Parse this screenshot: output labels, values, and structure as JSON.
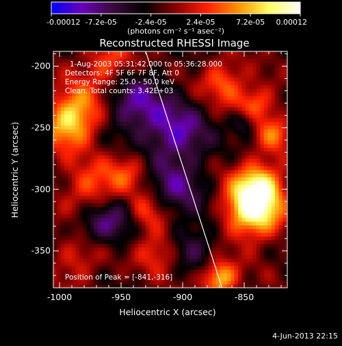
{
  "chart_data": {
    "type": "heatmap",
    "title": "Reconstructed RHESSI Image",
    "xlabel": "Heliocentric X (arcsec)",
    "ylabel": "Heliocentric Y (arcsec)",
    "xlim": [
      -1005,
      -815
    ],
    "ylim": [
      -380,
      -188
    ],
    "x_ticks": [
      -1000,
      -950,
      -900,
      -850
    ],
    "x_tick_labels": [
      "-1000",
      "-950",
      "-900",
      "-850"
    ],
    "y_ticks": [
      -200,
      -250,
      -300,
      -350
    ],
    "y_tick_labels": [
      "-200",
      "-250",
      "-300",
      "-350"
    ],
    "colorbar": {
      "range": [
        -0.00012,
        0.00012
      ],
      "tick_labels": [
        "-0.00012",
        "-7.2e-05",
        "-2.4e-05",
        "2.4e-05",
        "7.2e-05",
        "0.00012"
      ],
      "units_line": "(photons cm⁻² s⁻¹ asec⁻²)",
      "colormap": [
        "#0000ff",
        "#6a00b8",
        "#3a0a3a",
        "#000000",
        "#8a0000",
        "#ff2000",
        "#ff9000",
        "#ffff60",
        "#ffffff"
      ]
    },
    "annotations": [
      "1-Aug-2003 05:31:42.000 to 05:36:28.000",
      "Detectors: 4F 5F 6F 7F 8F, Att 0",
      "Energy Range: 25.0 - 50.0 keV",
      "Clean.  Total counts: 3.42E+03",
      "Position of Peak = [-841,-316]"
    ],
    "peak": {
      "x": -841,
      "y": -316
    },
    "sources": [
      {
        "x": -843,
        "y": -317,
        "amp": 1.0,
        "s": 16
      },
      {
        "x": -838,
        "y": -296,
        "amp": 0.75,
        "s": 14
      },
      {
        "x": -870,
        "y": -372,
        "amp": 0.8,
        "s": 10
      },
      {
        "x": -985,
        "y": -236,
        "amp": 0.6,
        "s": 16
      },
      {
        "x": -995,
        "y": -250,
        "amp": 0.45,
        "s": 14
      },
      {
        "x": -960,
        "y": -198,
        "amp": 0.5,
        "s": 14
      },
      {
        "x": -868,
        "y": -212,
        "amp": 0.5,
        "s": 12
      },
      {
        "x": -842,
        "y": -232,
        "amp": 0.55,
        "s": 12
      },
      {
        "x": -825,
        "y": -255,
        "amp": 0.45,
        "s": 10
      },
      {
        "x": -975,
        "y": -300,
        "amp": 0.45,
        "s": 16
      },
      {
        "x": -945,
        "y": -285,
        "amp": 0.4,
        "s": 12
      },
      {
        "x": -930,
        "y": -320,
        "amp": 0.45,
        "s": 12
      },
      {
        "x": -920,
        "y": -350,
        "amp": 0.4,
        "s": 12
      },
      {
        "x": -985,
        "y": -355,
        "amp": 0.35,
        "s": 14
      },
      {
        "x": -940,
        "y": -230,
        "amp": -0.55,
        "s": 18
      },
      {
        "x": -905,
        "y": -255,
        "amp": -0.6,
        "s": 18
      },
      {
        "x": -955,
        "y": -325,
        "amp": -0.45,
        "s": 14
      },
      {
        "x": -905,
        "y": -300,
        "amp": -0.45,
        "s": 16
      },
      {
        "x": -850,
        "y": -245,
        "amp": -0.5,
        "s": 8
      },
      {
        "x": -890,
        "y": -345,
        "amp": -0.35,
        "s": 14
      },
      {
        "x": -975,
        "y": -330,
        "amp": -0.3,
        "s": 12
      }
    ],
    "limb_line": [
      {
        "x": -930,
        "y": -188
      },
      {
        "x": -868,
        "y": -380
      }
    ],
    "date_stamp": "4-Jun-2013 22:15"
  }
}
